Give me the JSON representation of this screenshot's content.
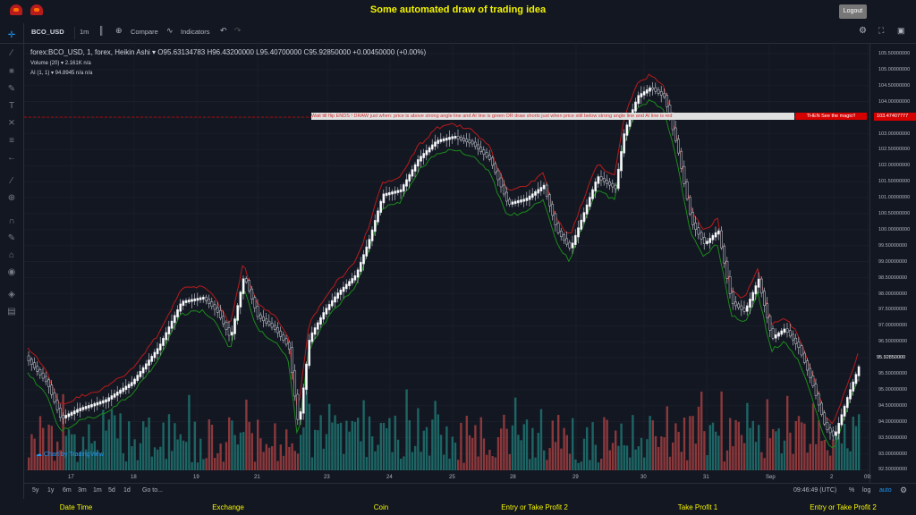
{
  "app": {
    "title": "Some automated draw of trading idea",
    "logout": "Logout"
  },
  "toolbar": {
    "symbol": "BCO_USD",
    "interval": "1m",
    "compare": "Compare",
    "indicators": "Indicators"
  },
  "legend": {
    "main": "forex:BCO_USD, 1, forex, Heikin Ashi ▾  O95.63134783  H96.43200000  L95.40700000  C95.92850000  +0.00450000 (+0.00%)",
    "volume": "Volume (20) ▾   2.161K   n/a",
    "ai": "AI (1, 1) ▾   94.8945   n/a   n/a"
  },
  "banner": {
    "text": "Wait till flip ENDS  !  DRAW just when:  price is above strong angle line and AI line is green       OR       draw shorts just when price still below strong angle line and AI line is red",
    "end": "THEN See the magic!!"
  },
  "price_label": "103.47407777",
  "current_price": "95.92850000",
  "y_ticks": [
    "105.50000000",
    "105.00000000",
    "104.50000000",
    "104.00000000",
    "103.50000000",
    "103.00000000",
    "102.50000000",
    "102.00000000",
    "101.50000000",
    "101.00000000",
    "100.50000000",
    "100.00000000",
    "99.50000000",
    "99.00000000",
    "98.50000000",
    "98.00000000",
    "97.50000000",
    "97.00000000",
    "96.50000000",
    "96.00000000",
    "95.50000000",
    "95.00000000",
    "94.50000000",
    "94.00000000",
    "93.50000000",
    "93.00000000",
    "92.50000000"
  ],
  "x_ticks": [
    "17",
    "18",
    "19",
    "21",
    "22",
    "23",
    "24",
    "25",
    "26",
    "28",
    "29",
    "30",
    "31",
    "Sep",
    "2",
    "09:"
  ],
  "tv_logo": "Chart by TradingView",
  "bottom": {
    "ranges": [
      "5y",
      "1y",
      "6m",
      "3m",
      "1m",
      "5d",
      "1d"
    ],
    "goto": "Go to...",
    "time": "09:46:49 (UTC)",
    "percent": "%",
    "log": "log",
    "auto": "auto"
  },
  "footer": [
    "Date Time",
    "Exchange",
    "Coin",
    "Entry or Take Profit 2",
    "Take Profit 1",
    "Entry or Take Profit 2"
  ],
  "colors": {
    "accent_yellow": "#f5f500",
    "banner_red": "#d50000",
    "up": "#26a69a",
    "down": "#ef5350"
  }
}
